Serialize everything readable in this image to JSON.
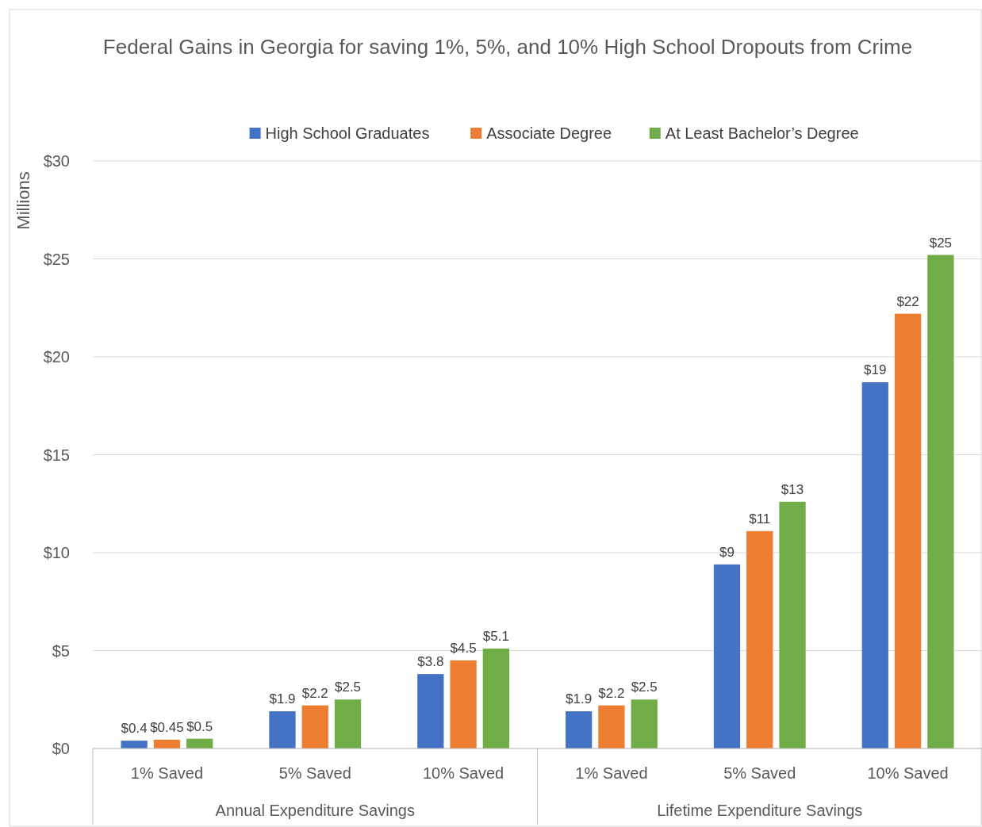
{
  "chart_data": {
    "type": "bar",
    "title": "Federal Gains in Georgia for saving 1%, 5%, and 10% High School Dropouts from Crime",
    "ylabel": "Millions",
    "categories": [
      "1% Saved",
      "5% Saved",
      "10% Saved",
      "1% Saved",
      "5% Saved",
      "10% Saved"
    ],
    "annotations": [
      "Annual Expenditure Savings",
      "Lifetime Expenditure Savings"
    ],
    "series": [
      {
        "name": "High School Graduates",
        "color": "#4472c4",
        "values": [
          0.4,
          1.9,
          3.8,
          1.9,
          9.4,
          18.7
        ],
        "value_labels": [
          "$0.4",
          "$1.9",
          "$3.8",
          "$1.9",
          "$9",
          "$19"
        ]
      },
      {
        "name": "Associate Degree",
        "color": "#ed7d31",
        "values": [
          0.45,
          2.2,
          4.5,
          2.2,
          11.1,
          22.2
        ],
        "value_labels": [
          "$0.45",
          "$2.2",
          "$4.5",
          "$2.2",
          "$11",
          "$22"
        ]
      },
      {
        "name": "At Least Bachelor’s Degree",
        "color": "#70ad47",
        "values": [
          0.5,
          2.5,
          5.1,
          2.5,
          12.6,
          25.2
        ],
        "value_labels": [
          "$0.5",
          "$2.5",
          "$5.1",
          "$2.5",
          "$13",
          "$25"
        ]
      }
    ],
    "ylim": [
      0,
      30
    ],
    "yticks": [
      {
        "value": 0,
        "label": "$0"
      },
      {
        "value": 5,
        "label": "$5"
      },
      {
        "value": 10,
        "label": "$10"
      },
      {
        "value": 15,
        "label": "$15"
      },
      {
        "value": 20,
        "label": "$20"
      },
      {
        "value": 25,
        "label": "$25"
      },
      {
        "value": 30,
        "label": "$30"
      }
    ],
    "grid": "y",
    "legend": "top"
  }
}
